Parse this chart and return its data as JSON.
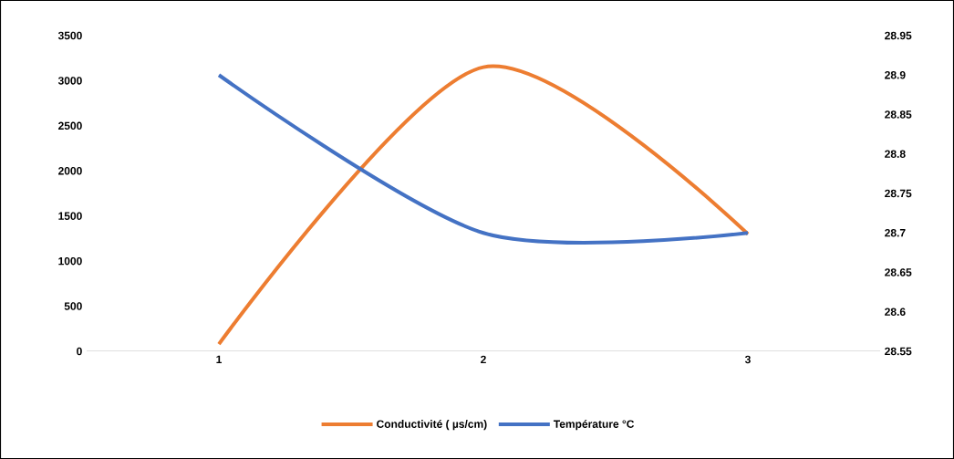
{
  "chart_data": {
    "type": "line",
    "categories": [
      "1",
      "2",
      "3"
    ],
    "series": [
      {
        "name": "Conductivité ( µs/cm)",
        "color": "#ed7d31",
        "values": [
          80,
          3150,
          1300
        ]
      },
      {
        "name": "Température °C",
        "color": "#4472c4",
        "values": [
          28.9,
          28.7,
          28.7
        ],
        "axis": "y2"
      }
    ],
    "ylim": [
      0,
      3500
    ],
    "yticks": [
      0,
      500,
      1000,
      1500,
      2000,
      2500,
      3000,
      3500
    ],
    "y2lim": [
      28.55,
      28.95
    ],
    "y2ticks": [
      28.55,
      28.6,
      28.65,
      28.7,
      28.75,
      28.8,
      28.85,
      28.9,
      28.95
    ],
    "grid": false,
    "legend": "bottom"
  }
}
